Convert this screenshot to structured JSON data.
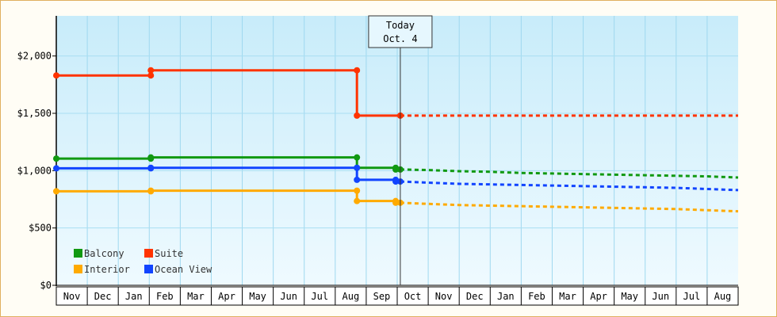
{
  "chart_data": {
    "type": "line",
    "title": "",
    "xlabel": "",
    "ylabel": "",
    "ylim": [
      0,
      2350
    ],
    "yticks": [
      {
        "value": 0,
        "label": "$0"
      },
      {
        "value": 500,
        "label": "$500"
      },
      {
        "value": 1000,
        "label": "$1,000"
      },
      {
        "value": 1500,
        "label": "$1,500"
      },
      {
        "value": 2000,
        "label": "$2,000"
      }
    ],
    "months": [
      "Nov",
      "Dec",
      "Jan",
      "Feb",
      "Mar",
      "Apr",
      "May",
      "Jun",
      "Jul",
      "Aug",
      "Sep",
      "Oct",
      "Nov",
      "Dec",
      "Jan",
      "Feb",
      "Mar",
      "Apr",
      "May",
      "Jun",
      "Jul",
      "Aug"
    ],
    "today": {
      "line1": "Today",
      "line2": "Oct. 4",
      "x": 11.1
    },
    "legend_position": "bottom-left",
    "grid": true,
    "series": [
      {
        "name": "Suite",
        "color": "#ff3300",
        "history": [
          [
            0,
            1830
          ],
          [
            3.05,
            1830
          ],
          [
            3.05,
            1875
          ],
          [
            9.7,
            1875
          ],
          [
            9.7,
            1480
          ],
          [
            11.1,
            1480
          ]
        ],
        "forecast": [
          [
            11.1,
            1480
          ],
          [
            22,
            1480
          ]
        ]
      },
      {
        "name": "Balcony",
        "color": "#119911",
        "history": [
          [
            0,
            1105
          ],
          [
            3.05,
            1105
          ],
          [
            3.05,
            1115
          ],
          [
            9.7,
            1115
          ],
          [
            9.7,
            1025
          ],
          [
            10.95,
            1025
          ],
          [
            10.95,
            1010
          ],
          [
            11.1,
            1010
          ]
        ],
        "forecast": [
          [
            11.1,
            1010
          ],
          [
            12,
            1005
          ],
          [
            13,
            995
          ],
          [
            14,
            990
          ],
          [
            15,
            980
          ],
          [
            16,
            975
          ],
          [
            17,
            970
          ],
          [
            18,
            965
          ],
          [
            19,
            960
          ],
          [
            20,
            955
          ],
          [
            21,
            950
          ],
          [
            22,
            940
          ]
        ]
      },
      {
        "name": "Ocean View",
        "color": "#1144ff",
        "history": [
          [
            0,
            1020
          ],
          [
            3.05,
            1020
          ],
          [
            3.05,
            1025
          ],
          [
            9.7,
            1025
          ],
          [
            9.7,
            920
          ],
          [
            10.95,
            920
          ],
          [
            10.95,
            905
          ],
          [
            11.1,
            905
          ]
        ],
        "forecast": [
          [
            11.1,
            905
          ],
          [
            12,
            895
          ],
          [
            13,
            885
          ],
          [
            14,
            880
          ],
          [
            15,
            875
          ],
          [
            16,
            870
          ],
          [
            17,
            865
          ],
          [
            18,
            860
          ],
          [
            19,
            855
          ],
          [
            20,
            850
          ],
          [
            21,
            840
          ],
          [
            22,
            830
          ]
        ]
      },
      {
        "name": "Interior",
        "color": "#ffaa00",
        "history": [
          [
            0,
            820
          ],
          [
            3.05,
            820
          ],
          [
            3.05,
            825
          ],
          [
            9.7,
            825
          ],
          [
            9.7,
            735
          ],
          [
            10.95,
            735
          ],
          [
            10.95,
            720
          ],
          [
            11.1,
            720
          ]
        ],
        "forecast": [
          [
            11.1,
            720
          ],
          [
            12,
            710
          ],
          [
            13,
            700
          ],
          [
            14,
            695
          ],
          [
            15,
            690
          ],
          [
            16,
            685
          ],
          [
            17,
            680
          ],
          [
            18,
            675
          ],
          [
            19,
            670
          ],
          [
            20,
            665
          ],
          [
            21,
            655
          ],
          [
            22,
            645
          ]
        ]
      }
    ],
    "markers": {
      "Suite": [
        [
          0,
          1830
        ],
        [
          3.05,
          1830
        ],
        [
          3.05,
          1875
        ],
        [
          9.7,
          1875
        ],
        [
          9.7,
          1480
        ],
        [
          11.1,
          1480
        ]
      ],
      "Balcony": [
        [
          0,
          1105
        ],
        [
          3.05,
          1105
        ],
        [
          3.05,
          1115
        ],
        [
          9.7,
          1115
        ],
        [
          9.7,
          1025
        ],
        [
          10.95,
          1025
        ],
        [
          10.95,
          1010
        ],
        [
          11.1,
          1010
        ]
      ],
      "Ocean View": [
        [
          0,
          1020
        ],
        [
          3.05,
          1020
        ],
        [
          3.05,
          1025
        ],
        [
          9.7,
          1025
        ],
        [
          9.7,
          920
        ],
        [
          10.95,
          920
        ],
        [
          10.95,
          905
        ],
        [
          11.1,
          905
        ]
      ],
      "Interior": [
        [
          0,
          820
        ],
        [
          3.05,
          820
        ],
        [
          3.05,
          825
        ],
        [
          9.7,
          825
        ],
        [
          9.7,
          735
        ],
        [
          10.95,
          735
        ],
        [
          10.95,
          720
        ],
        [
          11.1,
          720
        ]
      ]
    },
    "legend": [
      {
        "name": "Balcony",
        "color": "#119911"
      },
      {
        "name": "Suite",
        "color": "#ff3300"
      },
      {
        "name": "Interior",
        "color": "#ffaa00"
      },
      {
        "name": "Ocean View",
        "color": "#1144ff"
      }
    ]
  }
}
